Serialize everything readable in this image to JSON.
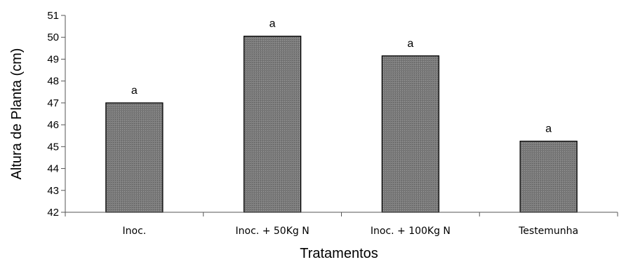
{
  "chart_data": {
    "type": "bar",
    "title": "",
    "xlabel": "Tratamentos",
    "ylabel": "Altura de Planta (cm)",
    "categories": [
      "Inoc.",
      "Inoc. + 50Kg N",
      "Inoc. + 100Kg N",
      "Testemunha"
    ],
    "values": [
      47.0,
      50.05,
      49.15,
      45.25
    ],
    "data_labels": [
      "a",
      "a",
      "a",
      "a"
    ],
    "ylim": [
      42,
      51
    ],
    "yticks": [
      42,
      43,
      44,
      45,
      46,
      47,
      48,
      49,
      50,
      51
    ],
    "grid": false,
    "legend": "none",
    "bar_fill": "#7a7a7a",
    "bar_stroke": "#000000"
  }
}
